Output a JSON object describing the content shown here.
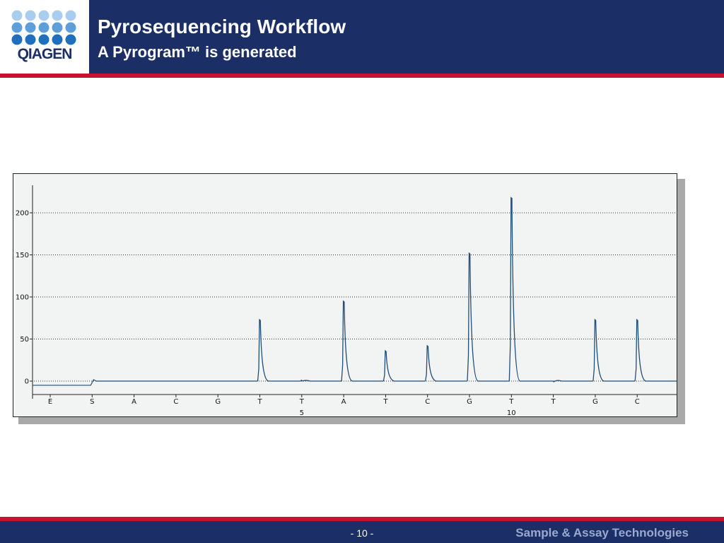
{
  "header": {
    "logo_text": "QIAGEN",
    "title": "Pyrosequencing Workflow",
    "subtitle": "A Pyrogram™ is generated"
  },
  "footer": {
    "page_number": "- 10 -",
    "tagline": "Sample & Assay Technologies"
  },
  "colors": {
    "brand_navy": "#1b2f66",
    "accent_red": "#c4122f",
    "trace": "#1f4e79"
  },
  "chart_data": {
    "type": "line",
    "title": "",
    "xlabel": "",
    "ylabel": "",
    "ylim": [
      0,
      230
    ],
    "y_ticks": [
      0,
      50,
      100,
      150,
      200
    ],
    "grid": "horizontal dotted",
    "x_categories": [
      "E",
      "S",
      "A",
      "C",
      "G",
      "T",
      "T",
      "A",
      "T",
      "C",
      "G",
      "T",
      "T",
      "G",
      "C"
    ],
    "x_number_labels": [
      {
        "index": 6,
        "label": "5"
      },
      {
        "index": 11,
        "label": "10"
      }
    ],
    "baseline_before_substrate": -5,
    "peaks": [
      {
        "index": 5,
        "nucleotide": "T",
        "height": 73
      },
      {
        "index": 6,
        "nucleotide": "T",
        "height": 1
      },
      {
        "index": 7,
        "nucleotide": "A",
        "height": 95
      },
      {
        "index": 8,
        "nucleotide": "T",
        "height": 36
      },
      {
        "index": 9,
        "nucleotide": "C",
        "height": 42
      },
      {
        "index": 10,
        "nucleotide": "G",
        "height": 152
      },
      {
        "index": 11,
        "nucleotide": "T",
        "height": 218
      },
      {
        "index": 12,
        "nucleotide": "T",
        "height": 0
      },
      {
        "index": 13,
        "nucleotide": "G",
        "height": 73
      },
      {
        "index": 14,
        "nucleotide": "C",
        "height": 73
      }
    ]
  }
}
